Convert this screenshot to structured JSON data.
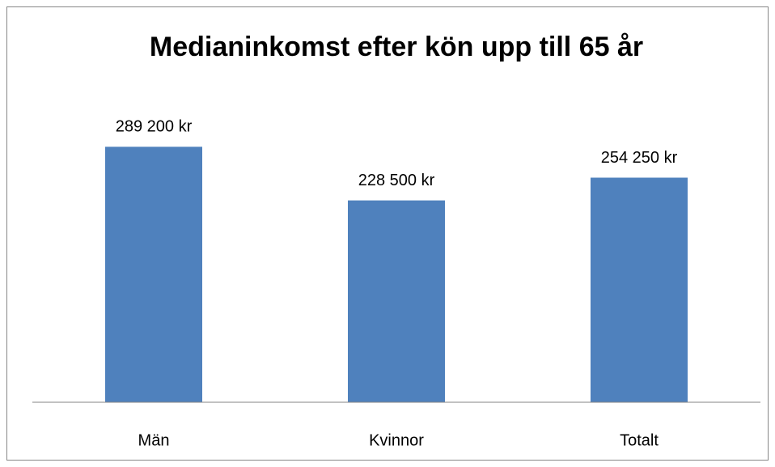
{
  "chart_data": {
    "type": "bar",
    "title": "Medianinkomst efter kön upp till 65 år",
    "categories": [
      "Män",
      "Kvinnor",
      "Totalt"
    ],
    "values": [
      289200,
      228500,
      254250
    ],
    "value_labels": [
      "289 200 kr",
      "228 500 kr",
      "254 250 kr"
    ],
    "color": "#4f81bd",
    "ylim": [
      0,
      350000
    ]
  }
}
